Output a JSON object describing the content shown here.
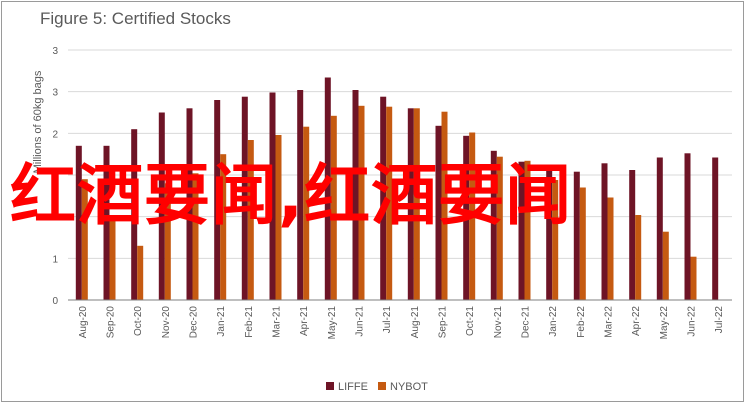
{
  "title": "Figure 5: Certified Stocks",
  "overlay_text": "红酒要闻,红酒要闻",
  "colors": {
    "liffe": "#6e1426",
    "nybot": "#c55a11",
    "grid": "#d9d9d9",
    "axis": "#7f7f7f",
    "overlay": "#ff0000"
  },
  "chart_data": {
    "type": "bar",
    "title": "Figure 5: Certified Stocks",
    "ylabel": "Millions of 60kg bags",
    "xlabel": "",
    "ylim": [
      0,
      3
    ],
    "ytick_values": [
      0,
      0.5,
      1,
      1.5,
      2,
      2.5,
      3
    ],
    "ytick_labels": [
      "0",
      "1",
      "1",
      "2",
      "2",
      "3",
      "3"
    ],
    "grid": true,
    "legend_position": "bottom",
    "categories": [
      "Aug-20",
      "Sep-20",
      "Oct-20",
      "Nov-20",
      "Dec-20",
      "Jan-21",
      "Feb-21",
      "Mar-21",
      "Apr-21",
      "May-21",
      "Jun-21",
      "Jul-21",
      "Aug-21",
      "Sep-21",
      "Oct-21",
      "Nov-21",
      "Dec-21",
      "Jan-22",
      "Feb-22",
      "Mar-22",
      "Apr-22",
      "May-22",
      "Jun-22",
      "Jul-22"
    ],
    "series": [
      {
        "name": "LIFFE",
        "values": [
          1.85,
          1.85,
          2.05,
          2.25,
          2.3,
          2.4,
          2.44,
          2.49,
          2.52,
          2.67,
          2.52,
          2.44,
          2.3,
          2.09,
          1.97,
          1.79,
          1.66,
          1.57,
          1.54,
          1.64,
          1.56,
          1.71,
          1.76,
          1.71
        ]
      },
      {
        "name": "NYBOT",
        "values": [
          1.45,
          0.95,
          0.65,
          1.4,
          1.52,
          1.75,
          1.92,
          1.98,
          2.08,
          2.21,
          2.33,
          2.32,
          2.3,
          2.26,
          2.01,
          1.72,
          1.67,
          1.44,
          1.35,
          1.23,
          1.02,
          0.82,
          0.52,
          0
        ]
      }
    ]
  }
}
